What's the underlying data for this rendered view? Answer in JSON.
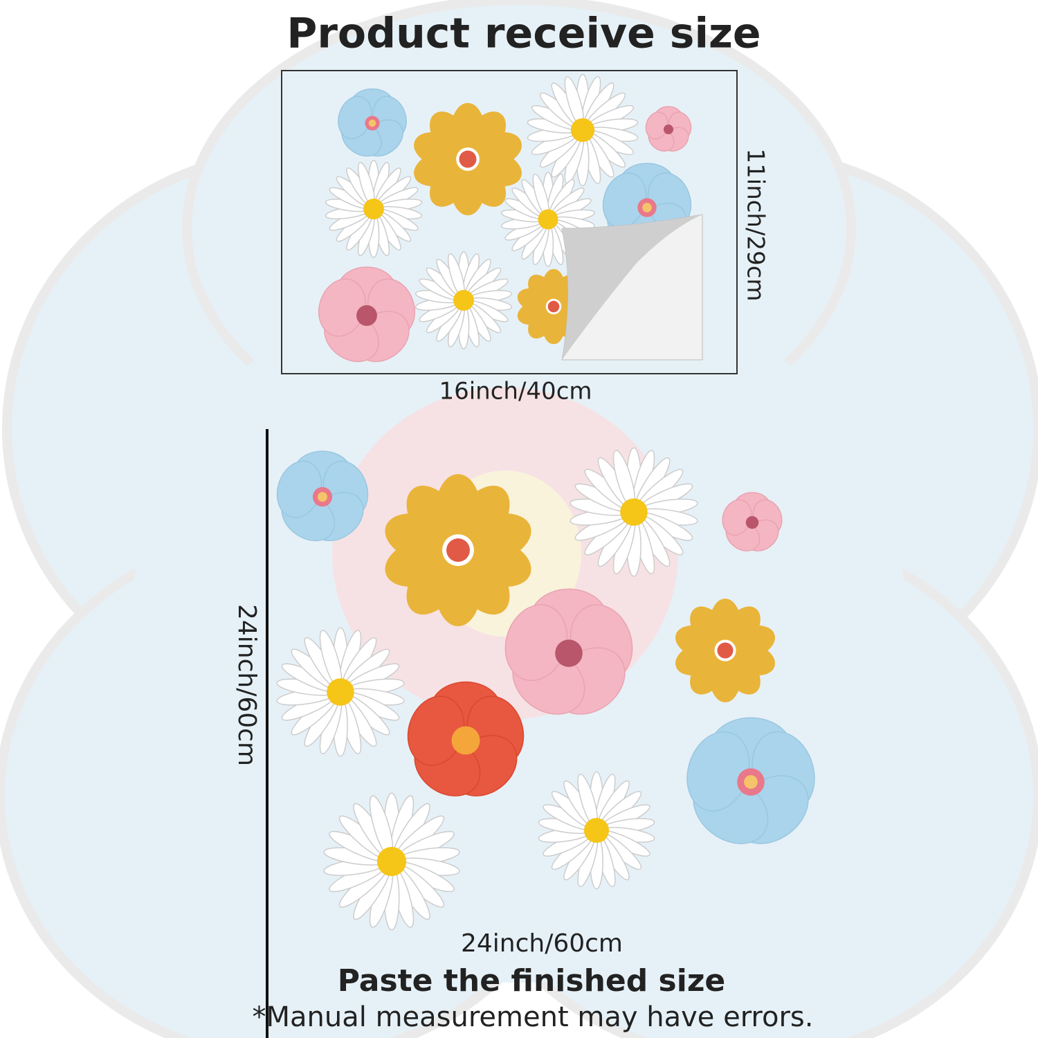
{
  "header": {
    "title": "Product receive size"
  },
  "sheet": {
    "width_label": "16inch/40cm",
    "height_label": "11inch/29cm"
  },
  "finished": {
    "width_label": "24inch/60cm",
    "height_label": "24inch/60cm",
    "title": "Paste the finished size"
  },
  "note": "*Manual measurement may have errors."
}
